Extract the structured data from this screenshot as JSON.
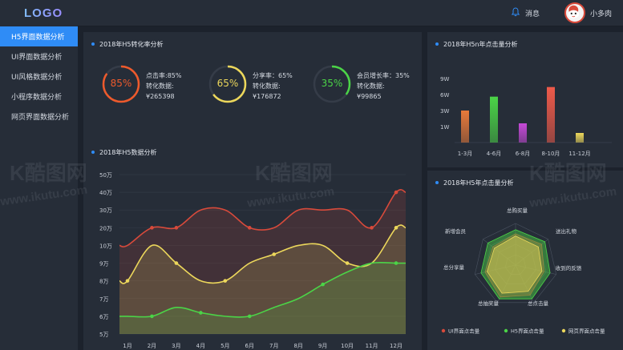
{
  "logo": "LOGO",
  "nav": [
    "H5界面数据分析",
    "UI界面数据分析",
    "UI风格数据分析",
    "小程序数据分析",
    "网页界面数据分析"
  ],
  "header": {
    "message_label": "消息",
    "username": "小多肉"
  },
  "conversion_panel": {
    "title": "2018年H5转化率分析",
    "kpis": [
      {
        "percent": "85%",
        "rate_label": "点击率:85%",
        "sub_label": "转化数据:",
        "amount": "¥265398",
        "color": "#ee5a2c"
      },
      {
        "percent": "65%",
        "rate_label": "分享率：65%",
        "sub_label": "转化数据:",
        "amount": "¥176872",
        "color": "#ecd75b"
      },
      {
        "percent": "35%",
        "rate_label": "会员增长率：35%",
        "sub_label": "转化数据:",
        "amount": "¥99865",
        "color": "#4bd447"
      }
    ]
  },
  "h5_chart": {
    "title": "2018年H5数据分析",
    "y_ticks": [
      "5万",
      "6万",
      "7万",
      "8万",
      "9万",
      "10万",
      "20万",
      "30万",
      "40万",
      "50万"
    ],
    "categories": [
      "1月",
      "2月",
      "3月",
      "4月",
      "5月",
      "6月",
      "7月",
      "8月",
      "9月",
      "10月",
      "11月",
      "12月"
    ]
  },
  "bar_panel": {
    "title": "2018年H5n年点击量分析",
    "y_ticks": [
      "1W",
      "3W",
      "6W",
      "9W"
    ],
    "categories": [
      "1-3月",
      "4-6月",
      "6-8月",
      "8-10月",
      "11-12月"
    ]
  },
  "radar_panel": {
    "title": "2018年H5年点击量分析",
    "axes": [
      "总购买量",
      "送出礼物",
      "收到的反馈",
      "总点击量",
      "总抽奖量",
      "总分享量",
      "新增会员"
    ],
    "legend": [
      {
        "label": "UI界面点击量",
        "color": "#d84a3b"
      },
      {
        "label": "H5界面点击量",
        "color": "#4bd447"
      },
      {
        "label": "网页界面点击量",
        "color": "#ecd75b"
      }
    ]
  },
  "chart_data": [
    {
      "type": "area",
      "title": "2018年H5数据分析",
      "categories": [
        "1月",
        "2月",
        "3月",
        "4月",
        "5月",
        "6月",
        "7月",
        "8月",
        "9月",
        "10月",
        "11月",
        "12月"
      ],
      "y_scale": "ordinal tick labels 5万,6万,7万,8万,9万,10万,20万,30万,40万,50万 (equal spacing)",
      "series": [
        {
          "color": "#d84a3b",
          "values": [
            10,
            20,
            20,
            30,
            30,
            20,
            20,
            30,
            30,
            30,
            20,
            40
          ]
        },
        {
          "color": "#ecd75b",
          "values": [
            8,
            10,
            9,
            8,
            8,
            9,
            9.5,
            10,
            10,
            9,
            9,
            20
          ]
        },
        {
          "color": "#4bd447",
          "values": [
            6,
            6,
            6.5,
            6.2,
            6,
            6,
            6.5,
            7,
            7.8,
            8.5,
            9,
            9
          ]
        }
      ]
    },
    {
      "type": "bar",
      "title": "2018年H5n年点击量分析",
      "categories": [
        "1-3月",
        "4-6月",
        "6-8月",
        "8-10月",
        "11-12月"
      ],
      "y_scale": "ordinal tick labels 1W,3W,6W,9W (equal spacing)",
      "values": [
        3,
        5.6,
        1.4,
        7.4,
        0.6
      ],
      "colors": [
        "#e87a3a",
        "#4bd447",
        "#c64ad8",
        "#ee5a4a",
        "#ecd75b"
      ]
    },
    {
      "type": "radar",
      "title": "2018年H5年点击量分析",
      "axes": [
        "总购买量",
        "送出礼物",
        "收到的反馈",
        "总点击量",
        "总抽奖量",
        "总分享量",
        "新增会员"
      ],
      "series": [
        {
          "name": "UI界面点击量",
          "color": "#d84a3b",
          "values": [
            0.75,
            0.8,
            0.7,
            0.8,
            0.85,
            0.75,
            0.7
          ]
        },
        {
          "name": "H5界面点击量",
          "color": "#4bd447",
          "values": [
            0.85,
            0.9,
            0.85,
            0.9,
            0.9,
            0.85,
            0.85
          ]
        },
        {
          "name": "网页界面点击量",
          "color": "#ecd75b",
          "values": [
            0.7,
            0.7,
            0.65,
            0.7,
            0.75,
            0.7,
            0.65
          ]
        }
      ]
    }
  ],
  "watermark": {
    "brand": "酷图网",
    "url": "www.ikutu.com"
  }
}
